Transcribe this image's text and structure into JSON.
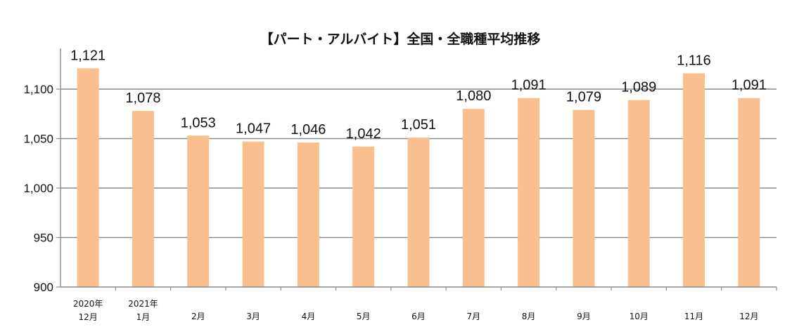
{
  "chart_data": {
    "type": "bar",
    "title": "【パート・アルバイト】全国・全職種平均推移",
    "xlabel": "",
    "ylabel": "",
    "categories": [
      [
        "2020年",
        "12月"
      ],
      [
        "2021年",
        "1月"
      ],
      [
        "2月"
      ],
      [
        "3月"
      ],
      [
        "4月"
      ],
      [
        "5月"
      ],
      [
        "6月"
      ],
      [
        "7月"
      ],
      [
        "8月"
      ],
      [
        "9月"
      ],
      [
        "10月"
      ],
      [
        "11月"
      ],
      [
        "12月"
      ]
    ],
    "values": [
      1121,
      1078,
      1053,
      1047,
      1046,
      1042,
      1051,
      1080,
      1091,
      1079,
      1089,
      1116,
      1091
    ],
    "value_labels": [
      "1,121",
      "1,078",
      "1,053",
      "1,047",
      "1,046",
      "1,042",
      "1,051",
      "1,080",
      "1,091",
      "1,079",
      "1,089",
      "1,116",
      "1,091"
    ],
    "ylim": [
      900,
      1100
    ],
    "yticks": [
      900,
      950,
      1000,
      1050,
      1100
    ],
    "ytick_labels": [
      "900",
      "950",
      "1,000",
      "1,050",
      "1,100"
    ],
    "grid": true,
    "legend": "none",
    "colors": {
      "bar": "#f9bf8f",
      "grid": "#8c8c8c",
      "axis": "#8c8c8c",
      "text": "#111111"
    }
  }
}
